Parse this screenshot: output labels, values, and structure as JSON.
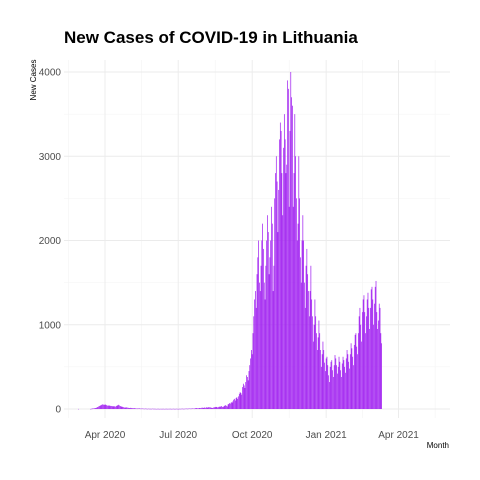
{
  "chart_data": {
    "type": "bar",
    "title": "New Cases of COVID-19 in Lithuania",
    "xlabel": "Month",
    "ylabel": "New Cases",
    "x_ticks": [
      "Apr 2020",
      "Jul 2020",
      "Oct 2020",
      "Jan 2021",
      "Apr 2021"
    ],
    "y_ticks": [
      "0",
      "1000",
      "2000",
      "3000",
      "4000"
    ],
    "x_range": [
      "2020-02-10",
      "2021-06-04"
    ],
    "ylim": [
      0,
      4000
    ],
    "grid": true,
    "bar_color": "#a020f0",
    "start_date": "2020-02-28",
    "series": [
      {
        "values": [
          1,
          0,
          0,
          0,
          0,
          0,
          0,
          0,
          0,
          0,
          0,
          0,
          0,
          0,
          0,
          1,
          3,
          4,
          8,
          6,
          10,
          12,
          11,
          20,
          23,
          30,
          35,
          40,
          45,
          50,
          55,
          52,
          48,
          55,
          50,
          45,
          40,
          42,
          38,
          42,
          35,
          36,
          32,
          35,
          30,
          32,
          28,
          35,
          40,
          45,
          50,
          42,
          35,
          30,
          28,
          25,
          22,
          18,
          15,
          20,
          18,
          16,
          14,
          12,
          10,
          14,
          12,
          10,
          8,
          9,
          10,
          8,
          6,
          5,
          7,
          6,
          8,
          5,
          4,
          6,
          5,
          4,
          3,
          5,
          4,
          3,
          2,
          4,
          3,
          2,
          3,
          2,
          4,
          3,
          2,
          3,
          2,
          1,
          2,
          3,
          2,
          1,
          2,
          2,
          1,
          3,
          2,
          1,
          2,
          2,
          3,
          1,
          2,
          2,
          3,
          2,
          1,
          2,
          3,
          2,
          1,
          2,
          3,
          2,
          1,
          2,
          3,
          2,
          3,
          4,
          3,
          2,
          3,
          4,
          5,
          4,
          3,
          5,
          6,
          5,
          4,
          6,
          7,
          6,
          5,
          8,
          10,
          12,
          9,
          8,
          11,
          12,
          10,
          14,
          16,
          12,
          15,
          18,
          14,
          20,
          16,
          18,
          22,
          20,
          19,
          15,
          14,
          12,
          18,
          20,
          22,
          25,
          24,
          18,
          22,
          28,
          26,
          30,
          34,
          25,
          24,
          35,
          40,
          45,
          38,
          30,
          55,
          60,
          70,
          65,
          80,
          75,
          90,
          110,
          120,
          100,
          130,
          140,
          120,
          150,
          180,
          200,
          190,
          170,
          260,
          300,
          280,
          250,
          320,
          400,
          380,
          340,
          450,
          520,
          600,
          700,
          650,
          900,
          1100,
          1300,
          1400,
          1200,
          1600,
          1800,
          2000,
          1500,
          1400,
          1700,
          2000,
          2200,
          1900,
          1500,
          1300,
          1700,
          2000,
          2300,
          2100,
          1600,
          1800,
          2000,
          2400,
          2200,
          1400,
          1700,
          2500,
          2800,
          3000,
          2700,
          2100,
          2600,
          3200,
          3400,
          3300,
          2800,
          2300,
          3100,
          3500,
          3200,
          2800,
          2900,
          3900,
          3800,
          2400,
          3300,
          4000,
          3700,
          3600,
          2400,
          2800,
          3500,
          3000,
          2500,
          2000,
          2200,
          3000,
          2500,
          1800,
          1500,
          2000,
          2300,
          2000,
          1500,
          1200,
          1700,
          1900,
          1600,
          1400,
          1100,
          1400,
          1700,
          1300,
          1100,
          800,
          1000,
          1300,
          1100,
          900,
          700,
          850,
          1050,
          900,
          700,
          500,
          650,
          800,
          700,
          550,
          450,
          600,
          620,
          520,
          400,
          320,
          500,
          560,
          580,
          460,
          380,
          520,
          640,
          600,
          520,
          420,
          500,
          620,
          560,
          460,
          380,
          540,
          620,
          580,
          500,
          430,
          600,
          700,
          650,
          560,
          480,
          650,
          780,
          720,
          620,
          520,
          760,
          880,
          900,
          740,
          650,
          900,
          1100,
          1200,
          1000,
          800,
          1150,
          1300,
          1350,
          1150,
          900,
          1100,
          1300,
          1380,
          1200,
          950,
          1200,
          1420,
          1450,
          1300,
          1000,
          1250,
          1450,
          1520,
          1150,
          950,
          1050,
          1250,
          1200,
          900,
          780
        ]
      }
    ]
  }
}
